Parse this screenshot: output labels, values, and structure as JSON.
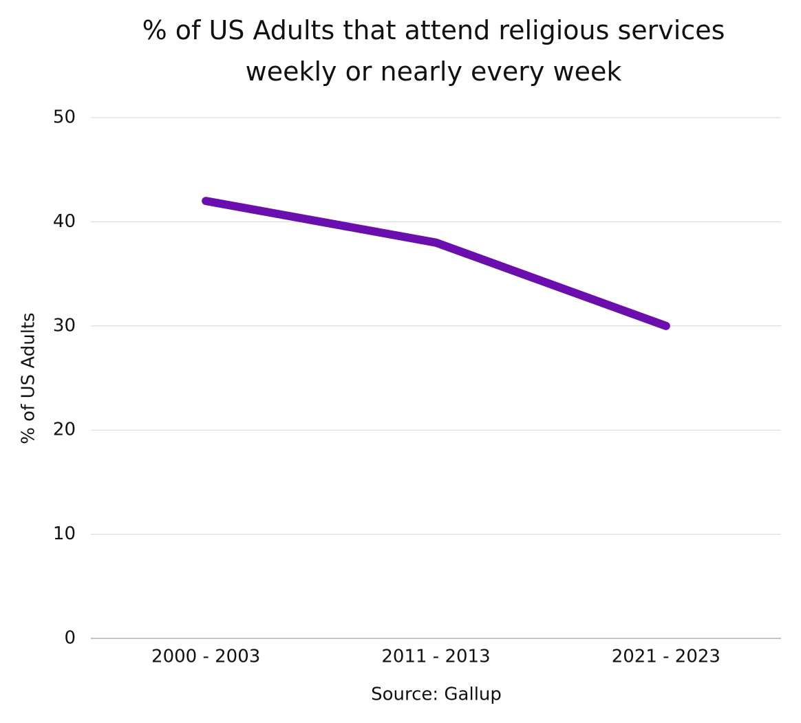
{
  "chart_data": {
    "type": "line",
    "title": "% of US Adults that attend religious services weekly or nearly every week",
    "categories": [
      "2000 - 2003",
      "2011 - 2013",
      "2021 - 2023"
    ],
    "series": [
      {
        "name": "% of US Adults",
        "color": "#6a0fae",
        "values": [
          42,
          38,
          30
        ]
      }
    ],
    "ylabel": "% of US Adults",
    "xlabel": "Source: Gallup",
    "ylim": [
      0,
      50
    ],
    "yticks": [
      0,
      10,
      20,
      30,
      40,
      50
    ],
    "grid": true
  }
}
